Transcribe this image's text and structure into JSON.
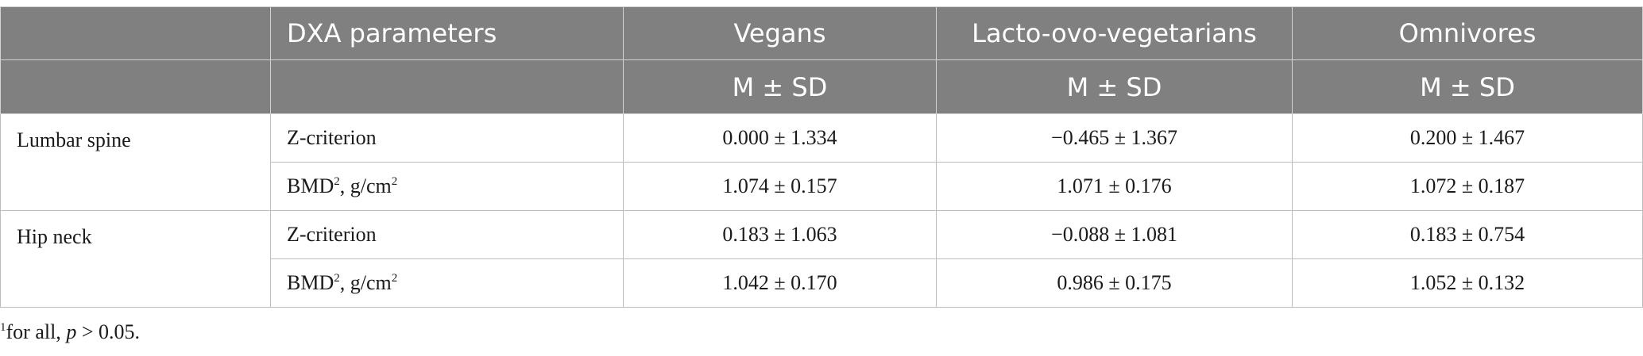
{
  "header": {
    "row1": [
      "",
      "DXA parameters",
      "Vegans",
      "Lacto-ovo-vegetarians",
      "Omnivores"
    ],
    "row2": [
      "",
      "",
      "M ± SD",
      "M ± SD",
      "M ± SD"
    ]
  },
  "sites": [
    {
      "name": "Lumbar spine",
      "rows": [
        {
          "param": "Z-criterion",
          "sup": "",
          "unit": "",
          "values": [
            "0.000 ± 1.334",
            "−0.465 ± 1.367",
            "0.200 ± 1.467"
          ]
        },
        {
          "param": "BMD",
          "sup": "2",
          "unit": ", g/cm",
          "unit_sup": "2",
          "values": [
            "1.074 ± 0.157",
            "1.071 ± 0.176",
            "1.072 ± 0.187"
          ]
        }
      ]
    },
    {
      "name": "Hip neck",
      "rows": [
        {
          "param": "Z-criterion",
          "sup": "",
          "unit": "",
          "values": [
            "0.183 ± 1.063",
            "−0.088 ± 1.081",
            "0.183 ± 0.754"
          ]
        },
        {
          "param": "BMD",
          "sup": "2",
          "unit": ", g/cm",
          "unit_sup": "2",
          "values": [
            "1.042 ± 0.170",
            "0.986 ± 0.175",
            "1.052 ± 0.132"
          ]
        }
      ]
    }
  ],
  "footnote": {
    "marker": "1",
    "text_before": "for all, ",
    "italic": "p",
    "text_after": " > 0.05."
  }
}
